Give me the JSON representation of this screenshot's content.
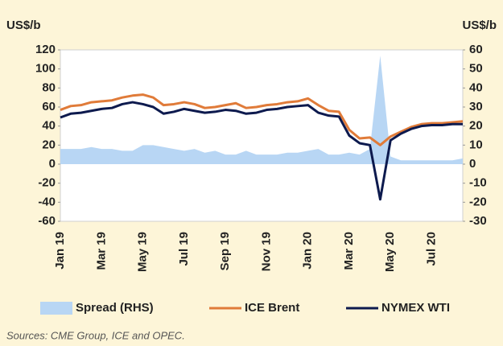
{
  "chart_data": {
    "type": "line",
    "ylabel": "US$/b",
    "y2label": "US$/b",
    "source": "Sources: CME Group, ICE and OPEC.",
    "categories": [
      "Jan 19",
      null,
      null,
      null,
      "Mar 19",
      null,
      null,
      null,
      "May 19",
      null,
      null,
      null,
      "Jul 19",
      null,
      null,
      null,
      "Sep 19",
      null,
      null,
      null,
      "Nov 19",
      null,
      null,
      null,
      "Jan 20",
      null,
      null,
      null,
      "Mar 20",
      null,
      null,
      null,
      "May 20",
      null,
      null,
      null,
      "Jul 20",
      null,
      null,
      null
    ],
    "ylim": [
      -60,
      120
    ],
    "yticks": [
      -60,
      -40,
      -20,
      0,
      20,
      40,
      60,
      80,
      100,
      120
    ],
    "y2lim": [
      -30,
      60
    ],
    "y2ticks": [
      -30,
      -20,
      -10,
      0,
      10,
      20,
      30,
      40,
      50,
      60
    ],
    "series": [
      {
        "name": "Spread (RHS)",
        "type": "area",
        "axis": "y2",
        "color": "#b8d6f4",
        "values": [
          8,
          8,
          8,
          9,
          8,
          8,
          7,
          7,
          10,
          10,
          9,
          8,
          7,
          8,
          6,
          7,
          5,
          5,
          7,
          5,
          5,
          5,
          6,
          6,
          7,
          8,
          5,
          5,
          6,
          5,
          8,
          57,
          4,
          2,
          2,
          2,
          2,
          2,
          2,
          3
        ]
      },
      {
        "name": "ICE Brent",
        "type": "line",
        "color": "#e07b39",
        "values": [
          57,
          61,
          62,
          65,
          66,
          67,
          70,
          72,
          73,
          70,
          62,
          63,
          65,
          63,
          59,
          60,
          62,
          64,
          59,
          60,
          62,
          63,
          65,
          66,
          69,
          62,
          56,
          55,
          36,
          27,
          28,
          20,
          29,
          34,
          39,
          42,
          43,
          43,
          44,
          45
        ]
      },
      {
        "name": "NYMEX WTI",
        "type": "line",
        "color": "#0d1a4e",
        "values": [
          49,
          53,
          54,
          56,
          58,
          59,
          63,
          65,
          63,
          60,
          53,
          55,
          58,
          56,
          54,
          55,
          57,
          56,
          53,
          54,
          57,
          58,
          60,
          61,
          62,
          54,
          51,
          50,
          30,
          22,
          20,
          -37,
          25,
          32,
          37,
          40,
          41,
          41,
          42,
          42
        ]
      }
    ]
  }
}
